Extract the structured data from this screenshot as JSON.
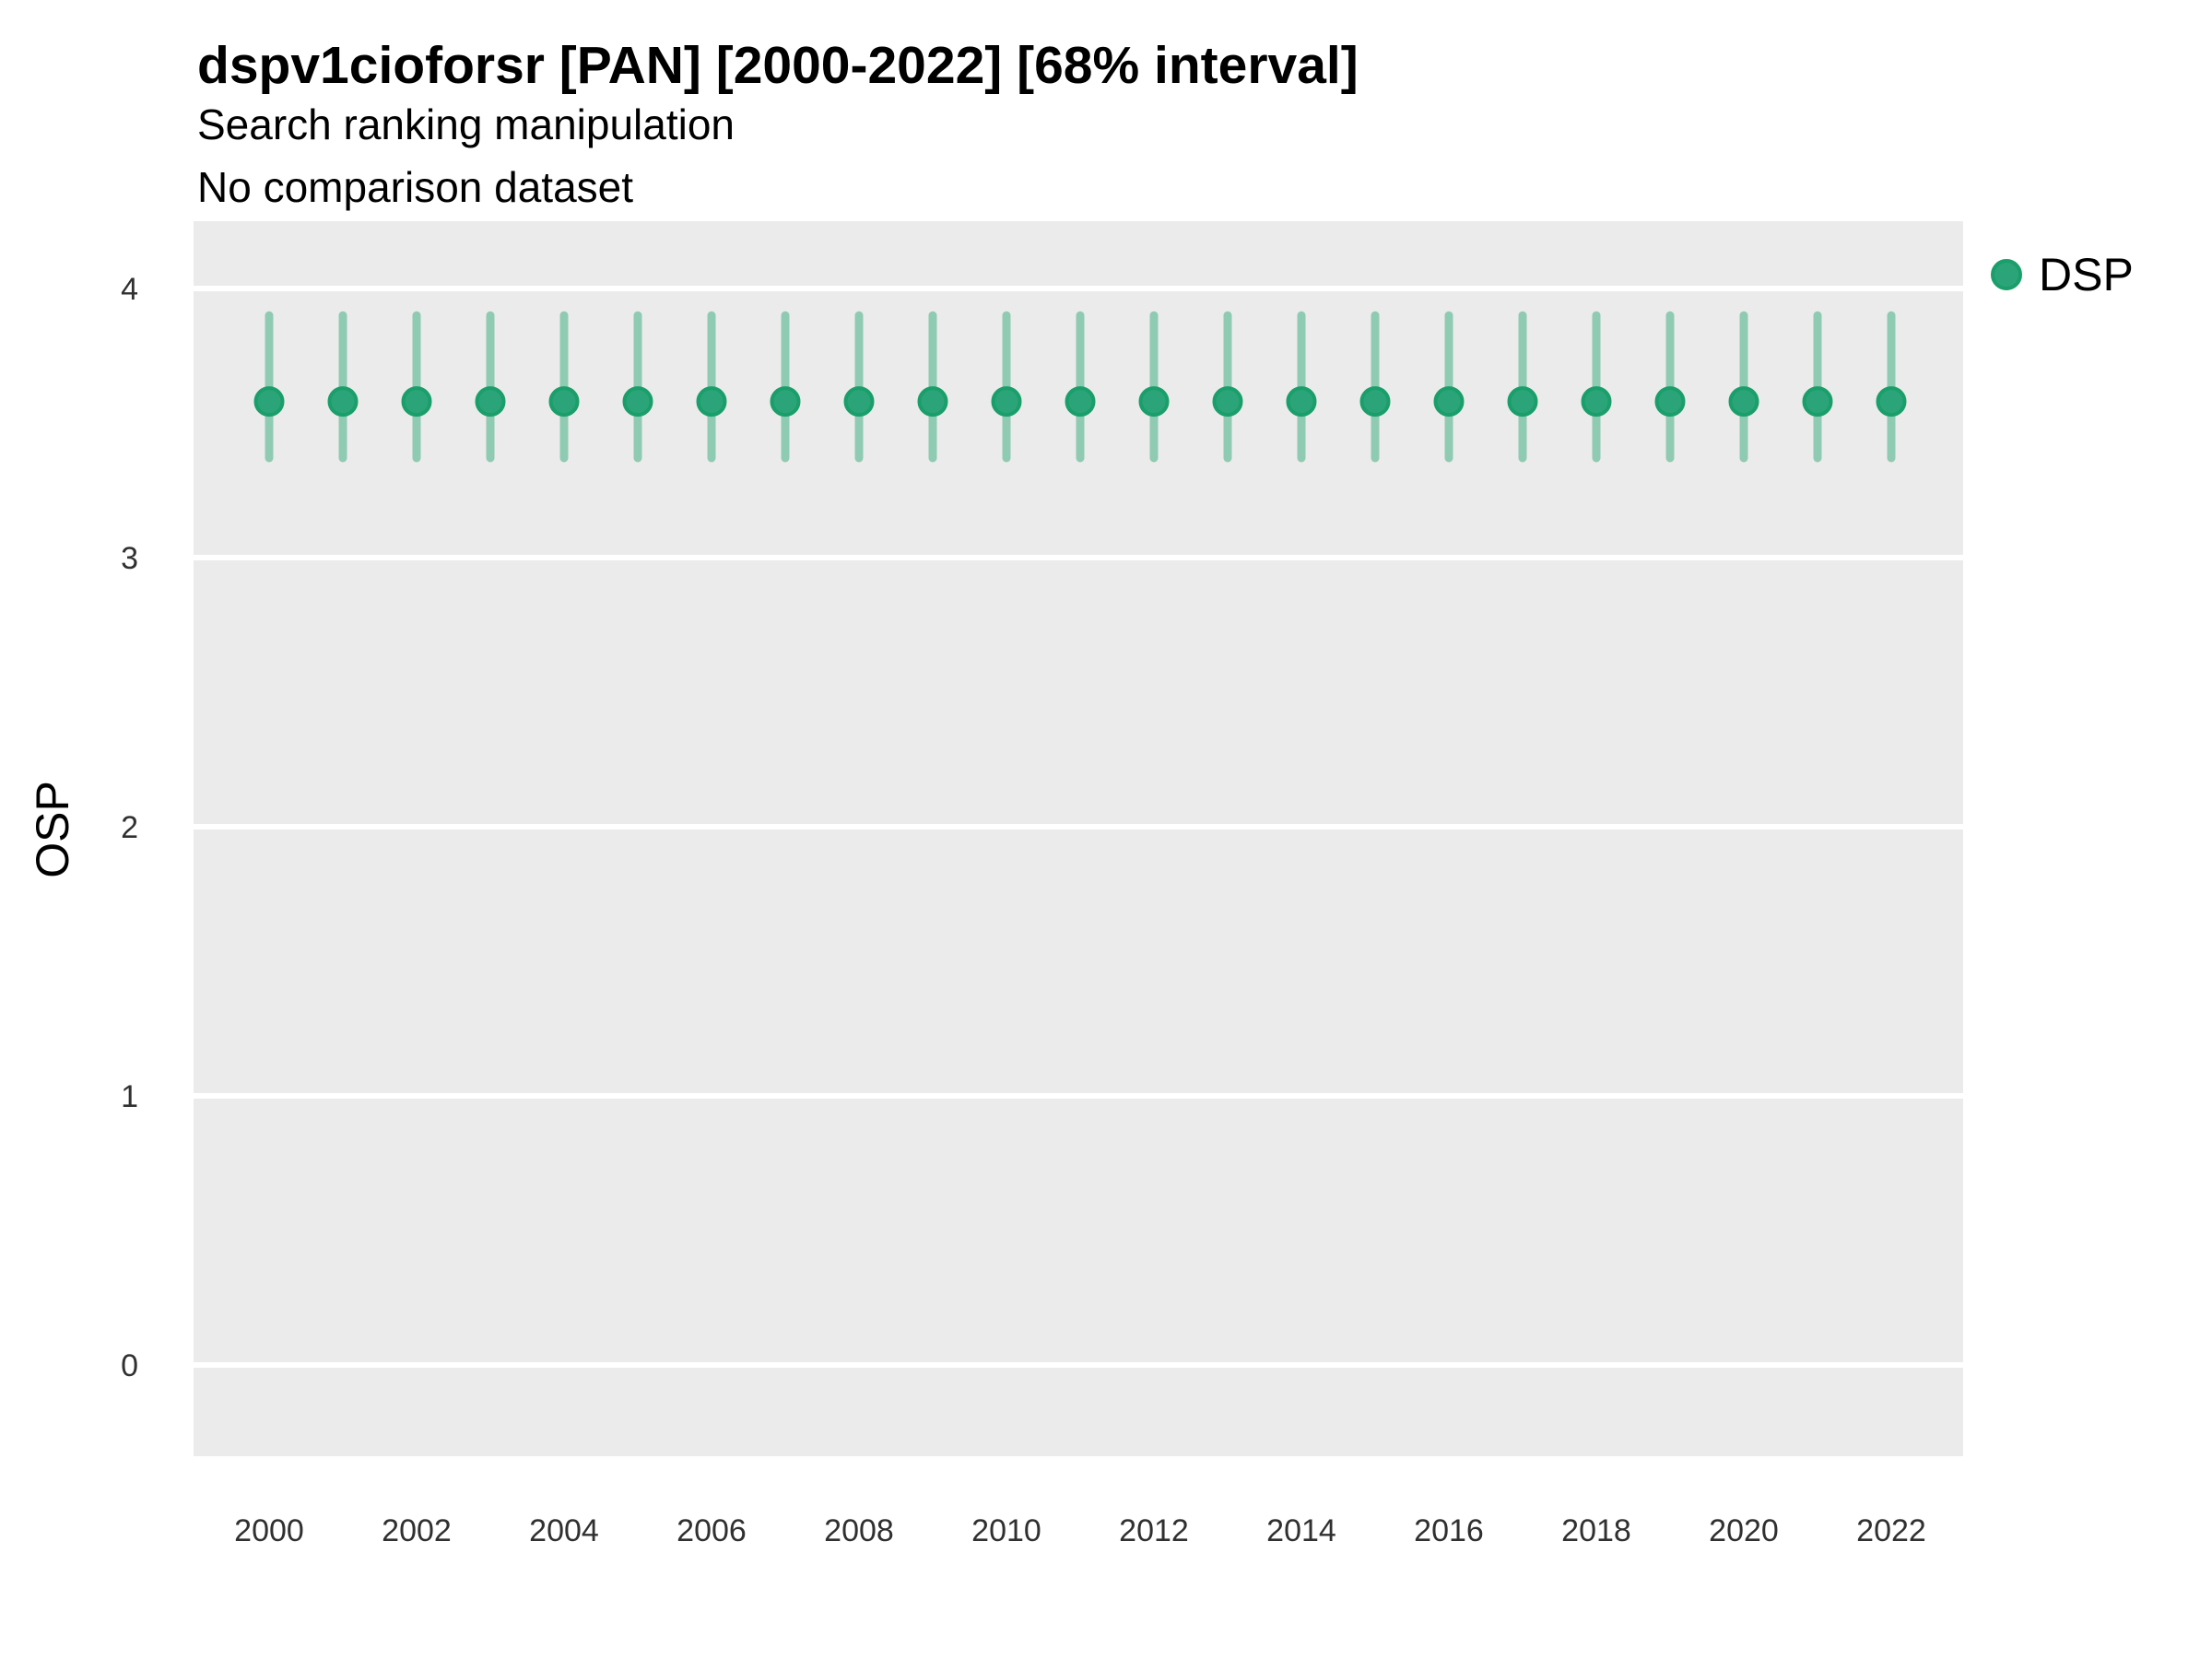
{
  "title": "dspv1cioforsr [PAN] [2000-2022] [68% interval]",
  "subtitle1": "Search ranking manipulation",
  "subtitle2": "No comparison dataset",
  "y_axis_label": "OSP",
  "legend": {
    "label": "DSP"
  },
  "colors": {
    "panel_background": "#EBEBEB",
    "gridline": "#FFFFFF",
    "point_fill": "#2BA47A",
    "point_stroke": "#1A9E6A",
    "interval_bar": "#8FCBB3",
    "tick_text": "#303030"
  },
  "chart_data": {
    "type": "scatter",
    "subtype": "pointrange",
    "title": "dspv1cioforsr [PAN] [2000-2022] [68% interval]",
    "subtitle": "Search ranking manipulation",
    "note": "No comparison dataset",
    "xlabel": "",
    "ylabel": "OSP",
    "legend_position": "right-top",
    "grid": "horizontal-major-only",
    "interval_level": "68%",
    "x": [
      2000,
      2001,
      2002,
      2003,
      2004,
      2005,
      2006,
      2007,
      2008,
      2009,
      2010,
      2011,
      2012,
      2013,
      2014,
      2015,
      2016,
      2017,
      2018,
      2019,
      2020,
      2021,
      2022
    ],
    "series": [
      {
        "name": "DSP",
        "mid": [
          3.58,
          3.58,
          3.58,
          3.58,
          3.58,
          3.58,
          3.58,
          3.58,
          3.58,
          3.58,
          3.58,
          3.58,
          3.58,
          3.58,
          3.58,
          3.58,
          3.58,
          3.58,
          3.58,
          3.58,
          3.58,
          3.58,
          3.58
        ],
        "lo": [
          3.37,
          3.37,
          3.37,
          3.37,
          3.37,
          3.37,
          3.37,
          3.37,
          3.37,
          3.37,
          3.37,
          3.37,
          3.37,
          3.37,
          3.37,
          3.37,
          3.37,
          3.37,
          3.37,
          3.37,
          3.37,
          3.37,
          3.37
        ],
        "hi": [
          3.9,
          3.9,
          3.9,
          3.9,
          3.9,
          3.9,
          3.9,
          3.9,
          3.9,
          3.9,
          3.9,
          3.9,
          3.9,
          3.9,
          3.9,
          3.9,
          3.9,
          3.9,
          3.9,
          3.9,
          3.9,
          3.9,
          3.9
        ]
      }
    ],
    "x_tick_values": [
      2000,
      2002,
      2004,
      2006,
      2008,
      2010,
      2012,
      2014,
      2016,
      2018,
      2020,
      2022
    ],
    "x_tick_labels": [
      "2000",
      "2002",
      "2004",
      "2006",
      "2008",
      "2010",
      "2012",
      "2014",
      "2016",
      "2018",
      "2020",
      "2022"
    ],
    "y_tick_values": [
      4,
      3,
      2,
      1,
      0
    ],
    "y_tick_labels": [
      "4",
      "3",
      "2",
      "1",
      "0"
    ],
    "ylim": [
      -0.34,
      4.25
    ]
  }
}
